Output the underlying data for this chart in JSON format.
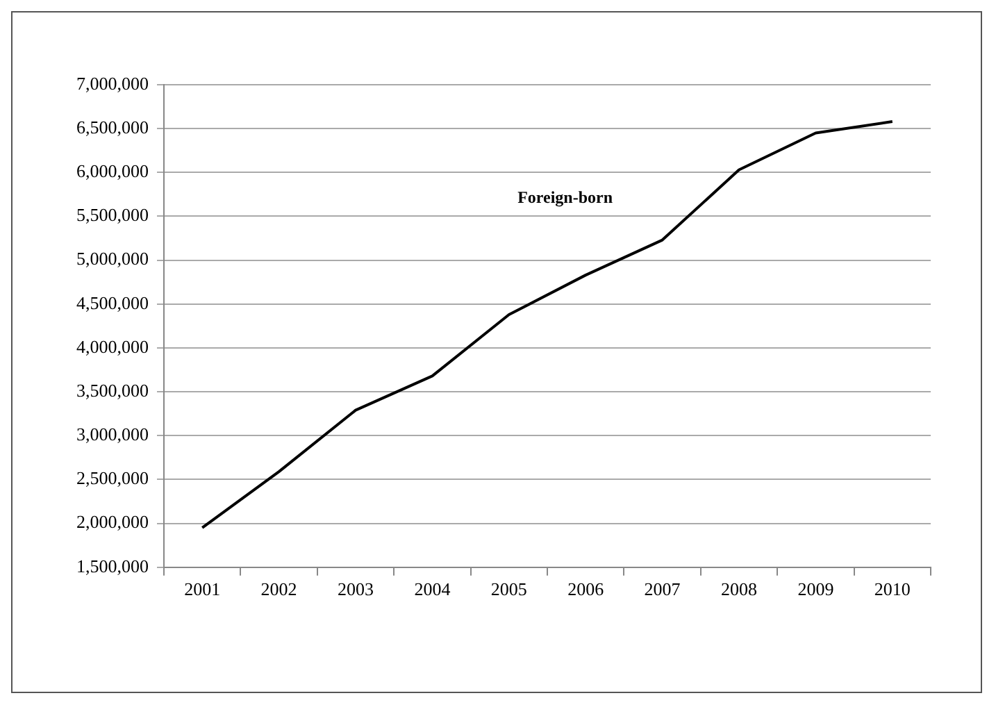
{
  "chart_data": {
    "type": "line",
    "categories": [
      "2001",
      "2002",
      "2003",
      "2004",
      "2005",
      "2006",
      "2007",
      "2008",
      "2009",
      "2010"
    ],
    "series": [
      {
        "name": "Foreign-born",
        "color": "#000000",
        "values": [
          1950000,
          2590000,
          3290000,
          3680000,
          4380000,
          4830000,
          5230000,
          6030000,
          6450000,
          6580000
        ]
      }
    ],
    "ylim": [
      1500000,
      7000000
    ],
    "yticks": [
      {
        "value": 1500000,
        "label": "1,500,000"
      },
      {
        "value": 2000000,
        "label": "2,000,000"
      },
      {
        "value": 2500000,
        "label": "2,500,000"
      },
      {
        "value": 3000000,
        "label": "3,000,000"
      },
      {
        "value": 3500000,
        "label": "3,500,000"
      },
      {
        "value": 4000000,
        "label": "4,000,000"
      },
      {
        "value": 4500000,
        "label": "4,500,000"
      },
      {
        "value": 5000000,
        "label": "5,000,000"
      },
      {
        "value": 5500000,
        "label": "5,500,000"
      },
      {
        "value": 6000000,
        "label": "6,000,000"
      },
      {
        "value": 6500000,
        "label": "6,500,000"
      },
      {
        "value": 7000000,
        "label": "7,000,000"
      }
    ],
    "grid": "y",
    "legend": false,
    "marker": "none",
    "line_style": "solid"
  }
}
